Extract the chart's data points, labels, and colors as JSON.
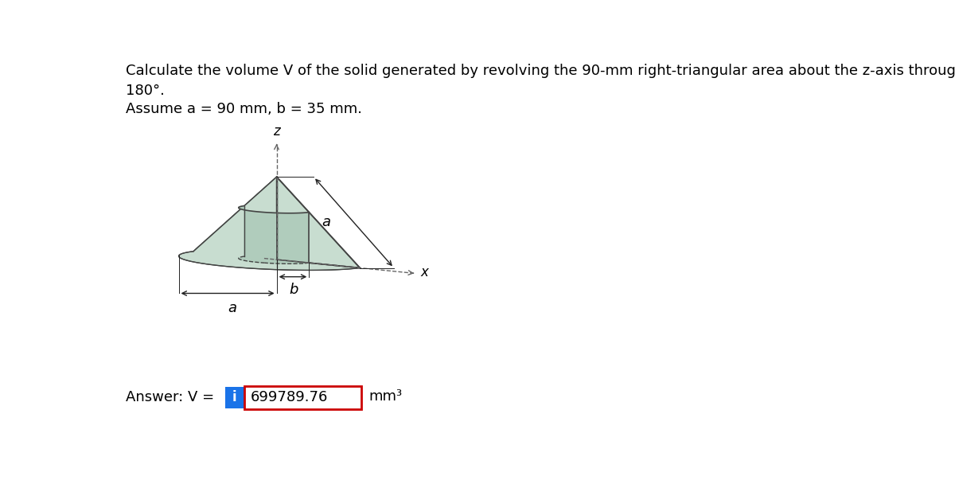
{
  "title_line1": "Calculate the volume V of the solid generated by revolving the 90-mm right-triangular area about the z-axis through",
  "title_line2": "180°.",
  "subtitle": "Assume a = 90 mm, b = 35 mm.",
  "answer_label": "Answer: V =",
  "answer_value": "699789.76",
  "answer_units": "mm³",
  "info_button_color": "#1a73e8",
  "info_button_text": "i",
  "answer_box_border": "#cc0000",
  "background_color": "#ffffff",
  "fill_light": "#c8ddd0",
  "fill_mid": "#a8c8b4",
  "fill_dark": "#88aa98",
  "fill_cylinder": "#b0ccbc",
  "edge_color": "#444444",
  "axis_color": "#666666",
  "dim_color": "#222222",
  "label_a": "a",
  "label_b": "b",
  "label_x": "x",
  "label_z": "z",
  "title_fontsize": 13,
  "subtitle_fontsize": 13,
  "answer_fontsize": 13,
  "label_fontsize": 13
}
